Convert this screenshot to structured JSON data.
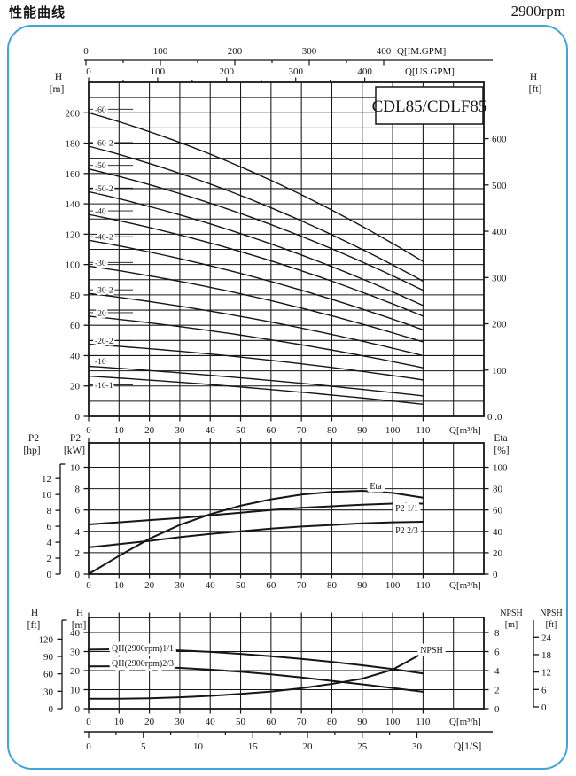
{
  "page": {
    "title": "性能曲线",
    "rpm": "2900rpm"
  },
  "colors": {
    "border_blue": "#3fa3dc",
    "ink": "#161616",
    "bg": "#ffffff"
  },
  "chart_data": [
    {
      "id": "head-flow-panel",
      "type": "line",
      "title": "CDL85/CDLF85",
      "x": {
        "label": "Q[m³/h]",
        "min": 0,
        "grid_max": 130,
        "curve_max": 110,
        "step": 10,
        "ticks": [
          0,
          10,
          20,
          30,
          40,
          50,
          60,
          70,
          80,
          90,
          100,
          110
        ]
      },
      "x_top_axes": [
        {
          "label": "Q[IM.GPM]",
          "ticks": [
            0,
            100,
            200,
            300,
            400
          ]
        },
        {
          "label": "Q[US.GPM]",
          "ticks": [
            0,
            100,
            200,
            300,
            400
          ]
        }
      ],
      "y_left": {
        "header": [
          "H",
          "[m]"
        ],
        "unit": "m",
        "ticks": [
          0,
          20,
          40,
          60,
          80,
          100,
          120,
          140,
          160,
          180,
          200
        ],
        "grid_step": 10,
        "grid_max": 220
      },
      "y_right": {
        "header": [
          "H",
          "[ft]"
        ],
        "unit": "ft",
        "ticks": [
          100,
          200,
          300,
          400,
          500,
          600
        ],
        "zero_label": "0 .0"
      },
      "series": [
        {
          "name": "-60",
          "head_m": {
            "0": 200,
            "55": 160,
            "110": 102
          }
        },
        {
          "name": "-60-2",
          "head_m": {
            "0": 178,
            "55": 141.5,
            "110": 89
          }
        },
        {
          "name": "-50",
          "head_m": {
            "0": 163,
            "55": 130,
            "110": 83
          }
        },
        {
          "name": "-50-2",
          "head_m": {
            "0": 148,
            "55": 117,
            "110": 73
          }
        },
        {
          "name": "-40",
          "head_m": {
            "0": 133,
            "55": 105.5,
            "110": 66
          }
        },
        {
          "name": "-40-2",
          "head_m": {
            "0": 116,
            "55": 91.5,
            "110": 57
          }
        },
        {
          "name": "-30",
          "head_m": {
            "0": 99,
            "55": 78.5,
            "110": 49
          }
        },
        {
          "name": "-30-2",
          "head_m": {
            "0": 81,
            "55": 64,
            "110": 40
          }
        },
        {
          "name": "-20",
          "head_m": {
            "0": 66,
            "55": 52,
            "110": 32
          }
        },
        {
          "name": "-20-2",
          "head_m": {
            "0": 47.5,
            "55": 38,
            "110": 24
          }
        },
        {
          "name": "-10",
          "head_m": {
            "0": 33,
            "55": 24.5,
            "110": 13.5
          }
        },
        {
          "name": "-10-1",
          "head_m": {
            "0": 26.5,
            "55": 18.5,
            "110": 8
          }
        }
      ]
    },
    {
      "id": "power-efficiency-panel",
      "type": "line",
      "x": {
        "label": "Q[m³/h]",
        "min": 0,
        "grid_max": 130,
        "curve_max": 110,
        "step": 10,
        "ticks": [
          0,
          10,
          20,
          30,
          40,
          50,
          60,
          70,
          80,
          90,
          100,
          110
        ]
      },
      "y_left_kw": {
        "header": [
          "P2",
          "[kW]"
        ],
        "ticks": [
          0,
          2,
          4,
          6,
          8,
          10
        ]
      },
      "y_left_hp": {
        "header": [
          "P2",
          "[hp]"
        ],
        "ticks": [
          0,
          2,
          4,
          6,
          8,
          10,
          12
        ]
      },
      "y_right_eta": {
        "header": [
          "Eta",
          "[%]"
        ],
        "ticks": [
          0,
          20,
          40,
          60,
          80,
          100
        ]
      },
      "series": [
        {
          "name": "Eta",
          "unit": "%",
          "points": [
            [
              0,
              0
            ],
            [
              10,
              17
            ],
            [
              20,
              33
            ],
            [
              30,
              46
            ],
            [
              40,
              56
            ],
            [
              50,
              64
            ],
            [
              60,
              70
            ],
            [
              70,
              74.5
            ],
            [
              80,
              77
            ],
            [
              90,
              78
            ],
            [
              100,
              76
            ],
            [
              110,
              71.5
            ]
          ]
        },
        {
          "name": "P2 1/1",
          "unit": "kW",
          "points": [
            [
              0,
              4.65
            ],
            [
              10,
              4.85
            ],
            [
              20,
              5.05
            ],
            [
              30,
              5.25
            ],
            [
              40,
              5.5
            ],
            [
              50,
              5.75
            ],
            [
              60,
              6.0
            ],
            [
              70,
              6.2
            ],
            [
              80,
              6.35
            ],
            [
              90,
              6.5
            ],
            [
              100,
              6.6
            ],
            [
              110,
              6.6
            ]
          ]
        },
        {
          "name": "P2 2/3",
          "unit": "kW",
          "points": [
            [
              0,
              2.5
            ],
            [
              10,
              2.8
            ],
            [
              20,
              3.1
            ],
            [
              30,
              3.45
            ],
            [
              40,
              3.75
            ],
            [
              50,
              4.0
            ],
            [
              60,
              4.25
            ],
            [
              70,
              4.45
            ],
            [
              80,
              4.6
            ],
            [
              90,
              4.75
            ],
            [
              100,
              4.85
            ],
            [
              110,
              4.9
            ]
          ]
        }
      ]
    },
    {
      "id": "qh-npsh-panel",
      "type": "line",
      "x": {
        "label": "Q[m³/h]",
        "min": 0,
        "grid_max": 130,
        "curve_max": 110,
        "step": 10,
        "ticks": [
          0,
          10,
          20,
          30,
          40,
          50,
          60,
          70,
          80,
          90,
          100,
          110
        ]
      },
      "x2": {
        "label": "Q[1/S]",
        "ticks": [
          0,
          5,
          10,
          15,
          20,
          25,
          30
        ]
      },
      "y_left_m": {
        "header": [
          "H",
          "[m]"
        ],
        "ticks": [
          0,
          10,
          20,
          30,
          40
        ]
      },
      "y_left_ft": {
        "header": [
          "H",
          "[ft]"
        ],
        "ticks": [
          0,
          30,
          60,
          90,
          120
        ]
      },
      "y_right_m": {
        "header": [
          "NPSH",
          "[m]"
        ],
        "ticks": [
          0,
          2,
          4,
          6,
          8
        ]
      },
      "y_right_ft": {
        "header": [
          "NPSH",
          "[ft]"
        ],
        "ticks": [
          0,
          6,
          12,
          18,
          24
        ]
      },
      "series": [
        {
          "name": "QH(2900rpm)1/1",
          "unit": "m",
          "points": [
            [
              0,
              31
            ],
            [
              10,
              31.2
            ],
            [
              20,
              31.1
            ],
            [
              30,
              30.6
            ],
            [
              40,
              29.8
            ],
            [
              50,
              28.8
            ],
            [
              60,
              27.6
            ],
            [
              70,
              26.2
            ],
            [
              80,
              24.6
            ],
            [
              90,
              22.8
            ],
            [
              100,
              20.8
            ],
            [
              110,
              18.5
            ]
          ]
        },
        {
          "name": "QH(2900rpm)2/3",
          "unit": "m",
          "points": [
            [
              0,
              22.2
            ],
            [
              10,
              22.3
            ],
            [
              20,
              22
            ],
            [
              30,
              21.4
            ],
            [
              40,
              20.5
            ],
            [
              50,
              19.4
            ],
            [
              60,
              18
            ],
            [
              70,
              16.4
            ],
            [
              80,
              14.6
            ],
            [
              90,
              12.8
            ],
            [
              100,
              10.9
            ],
            [
              110,
              8.9
            ]
          ]
        },
        {
          "name": "NPSH",
          "unit": "m (NPSH scale)",
          "points": [
            [
              0,
              1.05
            ],
            [
              10,
              1.05
            ],
            [
              20,
              1.1
            ],
            [
              30,
              1.2
            ],
            [
              40,
              1.35
            ],
            [
              50,
              1.55
            ],
            [
              60,
              1.8
            ],
            [
              70,
              2.15
            ],
            [
              80,
              2.6
            ],
            [
              90,
              3.15
            ],
            [
              100,
              4.1
            ],
            [
              110,
              5.85
            ]
          ]
        }
      ]
    }
  ]
}
